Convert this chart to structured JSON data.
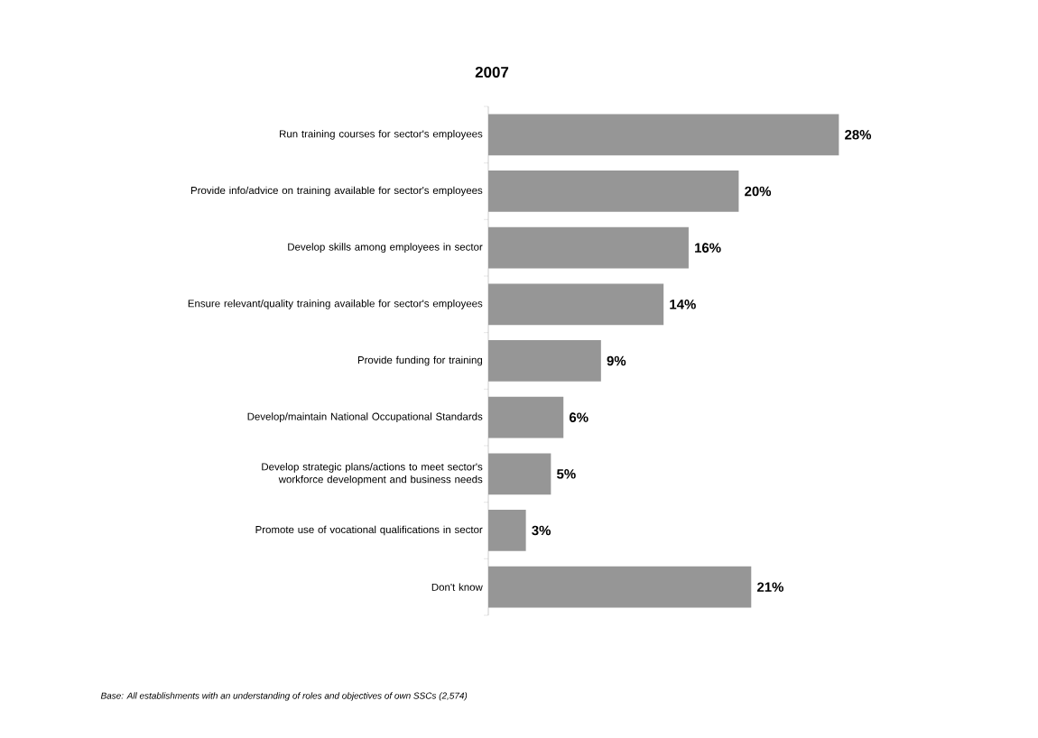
{
  "chart_data": {
    "type": "bar",
    "orientation": "horizontal",
    "title": "2007",
    "categories": [
      "Run training courses for sector's employees",
      "Provide info/advice on training available for sector's employees",
      "Develop skills among employees in sector",
      "Ensure relevant/quality training available for sector's employees",
      "Provide funding for training",
      "Develop/maintain National Occupational Standards",
      "Develop strategic plans/actions to meet sector's workforce development and business needs",
      "Promote use of vocational qualifications in sector",
      "Don't know"
    ],
    "values": [
      28,
      20,
      16,
      14,
      9,
      6,
      5,
      3,
      21
    ],
    "value_labels": [
      "28%",
      "20%",
      "16%",
      "14%",
      "9%",
      "6%",
      "5%",
      "3%",
      "21%"
    ],
    "color": "#969696",
    "tick_labels": "y",
    "annotations": [
      "Base: All establishments  with an understanding of roles and objectives of own SSCs (2,574)"
    ]
  }
}
